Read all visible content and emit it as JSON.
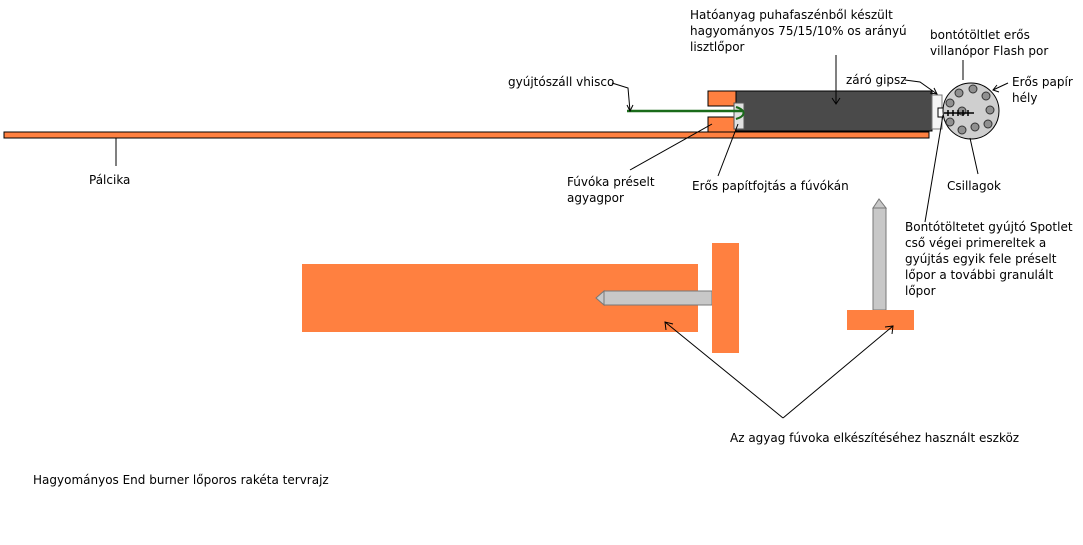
{
  "title": "Hagyományos End burner lőporos rakéta tervrajz",
  "labels": {
    "hatoanyag": [
      "Hatóanyag puhafaszénből készült",
      "hagyományos 75/15/10% os arányú",
      "lisztlőpor"
    ],
    "bontotoltet": [
      "bontótöltlet erős",
      "villanópor Flash por"
    ],
    "gyujtoszall": "gyújtószáll vhisco",
    "zaro_gipsz": "záró gipsz",
    "eros_papir_hely": [
      "Erős papír",
      "hély"
    ],
    "palcika": "Pálcika",
    "fuvoka": [
      "Fúvóka préselt",
      "agyagpor"
    ],
    "papirfojtas": "Erős papítfojtás a fúvókán",
    "csillagok": "Csillagok",
    "spotlet": [
      "Bontótöltetet gyújtó Spotlet",
      "cső végei primereltek a",
      "gyújtás egyik fele préselt",
      "lőpor a további granulált",
      "lőpor"
    ],
    "agyag_eszkoz": "Az agyag fúvoka elkészítéséhez használt eszköz"
  },
  "colors": {
    "orange": "#ff8040",
    "rocket_body": "#4a4a4a",
    "steel": "#c8c8c8",
    "fuse": "#1a6b1a",
    "head": "#cfcfcf"
  }
}
